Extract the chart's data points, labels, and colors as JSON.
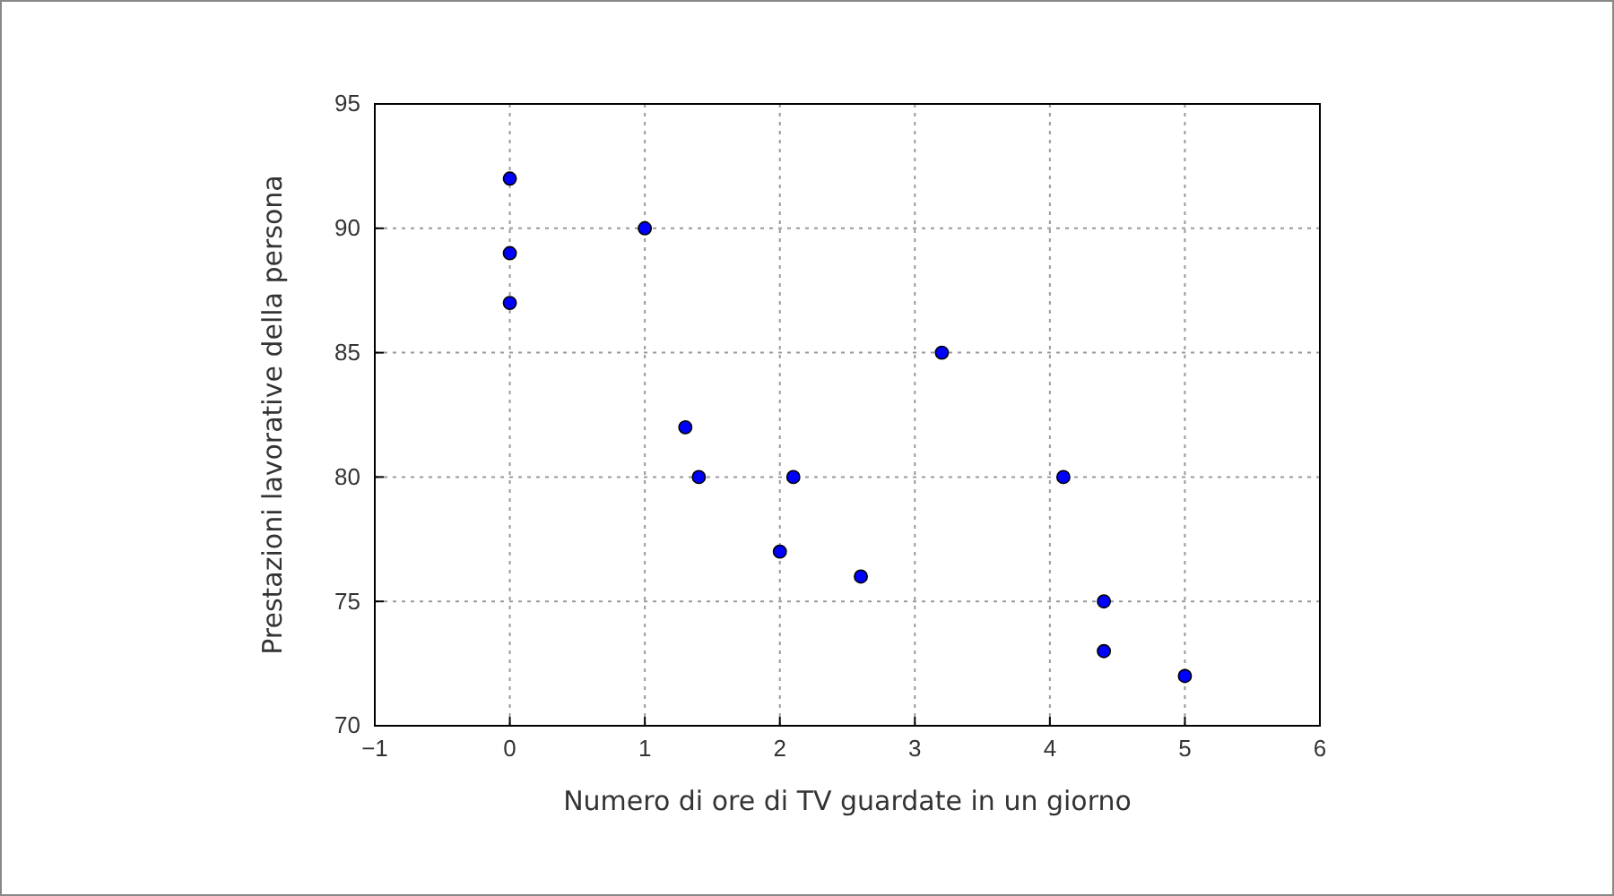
{
  "chart_data": {
    "type": "scatter",
    "xlabel": "Numero di ore di TV guardate in un giorno",
    "ylabel": "Prestazioni lavorative della persona",
    "x": [
      0,
      0,
      0,
      1,
      1.3,
      1.4,
      2,
      2.1,
      2.6,
      3.2,
      4.1,
      4.4,
      4.4,
      5
    ],
    "series": [
      {
        "color": "#0000ff",
        "values": [
          92,
          89,
          87,
          90,
          82,
          80,
          77,
          80,
          76,
          85,
          80,
          75,
          73,
          72
        ]
      }
    ],
    "xlim": [
      -1,
      6
    ],
    "xticks": [
      -1,
      0,
      1,
      2,
      3,
      4,
      5,
      6
    ],
    "ylim": [
      70,
      95
    ],
    "yticks": [
      70,
      75,
      80,
      85,
      90,
      95
    ],
    "grid": true,
    "marker": "circle"
  }
}
